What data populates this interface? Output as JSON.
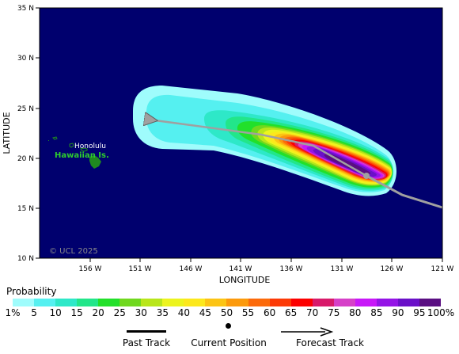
{
  "map": {
    "lat_labels": [
      "35 N",
      "30 N",
      "25 N",
      "20 N",
      "15 N",
      "10 N"
    ],
    "lon_labels": [
      "156 W",
      "151 W",
      "146 W",
      "141 W",
      "136 W",
      "131 W",
      "126 W",
      "121 W"
    ],
    "y_axis_title": "LATITUDE",
    "x_axis_title": "LONGITUDE",
    "place_labels": {
      "honolulu": "Honolulu",
      "hawaiian_islands": "Hawaiian Is."
    },
    "copyright": "© UCL 2025",
    "colors": {
      "ocean": "#00006e",
      "land": "#1f8a1f",
      "track": "#a0a0a0",
      "label_green": "#2ecc2e"
    }
  },
  "probability": {
    "title": "Probability",
    "levels": [
      "1%",
      "5",
      "10",
      "15",
      "20",
      "25",
      "30",
      "35",
      "40",
      "45",
      "50",
      "55",
      "60",
      "65",
      "70",
      "75",
      "80",
      "85",
      "90",
      "95",
      "100%"
    ],
    "colors": [
      "#9ffcfc",
      "#55f0f0",
      "#2ee8c8",
      "#22e68a",
      "#22e02a",
      "#70d81e",
      "#b8e61a",
      "#ecf41e",
      "#fce81c",
      "#fcc414",
      "#fc9a0c",
      "#fc6a0a",
      "#fc3a06",
      "#fc0000",
      "#d81a6a",
      "#d640c8",
      "#c818f8",
      "#9414e6",
      "#6a10c8",
      "#5a0e82"
    ]
  },
  "legend": {
    "past_track": "Past Track",
    "current_position": "Current Position",
    "forecast_track": "Forecast Track"
  }
}
